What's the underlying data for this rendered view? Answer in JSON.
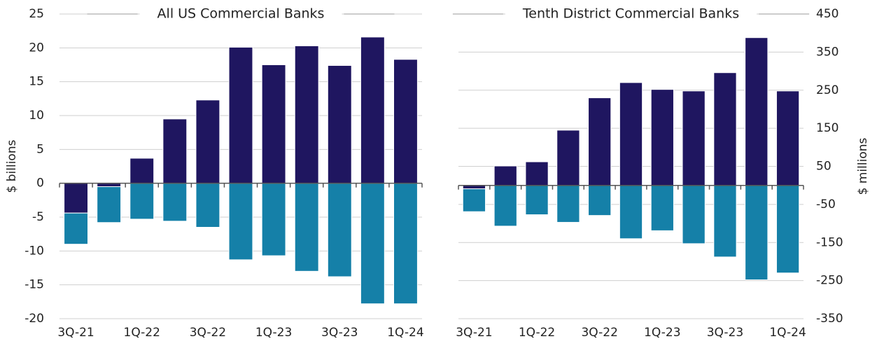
{
  "chart_data": [
    {
      "type": "bar",
      "stacked": true,
      "title": "All US Commercial Banks",
      "y_label": "$ billions",
      "y_axis_side": "left",
      "categories": [
        "3Q-21",
        null,
        "1Q-22",
        null,
        "3Q-22",
        null,
        "1Q-23",
        null,
        "3Q-23",
        null,
        "1Q-24"
      ],
      "series": [
        {
          "color": "#1f1660",
          "values": [
            -4.4,
            -0.5,
            3.7,
            9.5,
            12.3,
            20.1,
            17.5,
            20.3,
            17.4,
            21.6,
            18.3
          ]
        },
        {
          "color": "#1580a8",
          "values": [
            -4.6,
            -5.3,
            -5.3,
            -5.6,
            -6.5,
            -11.3,
            -10.7,
            -13.0,
            -13.8,
            -17.8,
            -17.8
          ]
        }
      ],
      "ylim": [
        -20,
        25
      ],
      "yticks": [
        -20,
        -15,
        -10,
        -5,
        0,
        5,
        10,
        15,
        20,
        25
      ],
      "grid": true
    },
    {
      "type": "bar",
      "stacked": true,
      "title": "Tenth District Commercial Banks",
      "y_label": "$ millions",
      "y_axis_side": "right",
      "categories": [
        "3Q-21",
        null,
        "1Q-22",
        null,
        "3Q-22",
        null,
        "1Q-23",
        null,
        "3Q-23",
        null,
        "1Q-24"
      ],
      "series": [
        {
          "color": "#1f1660",
          "values": [
            -9,
            51,
            62,
            145,
            230,
            270,
            252,
            248,
            296,
            388,
            248
          ]
        },
        {
          "color": "#1580a8",
          "values": [
            -60,
            -107,
            -77,
            -97,
            -79,
            -140,
            -119,
            -153,
            -188,
            -248,
            -230
          ]
        }
      ],
      "ylim": [
        -350,
        450
      ],
      "yticks": [
        -350,
        -250,
        -150,
        -50,
        50,
        150,
        250,
        350,
        450
      ],
      "grid": true
    }
  ]
}
